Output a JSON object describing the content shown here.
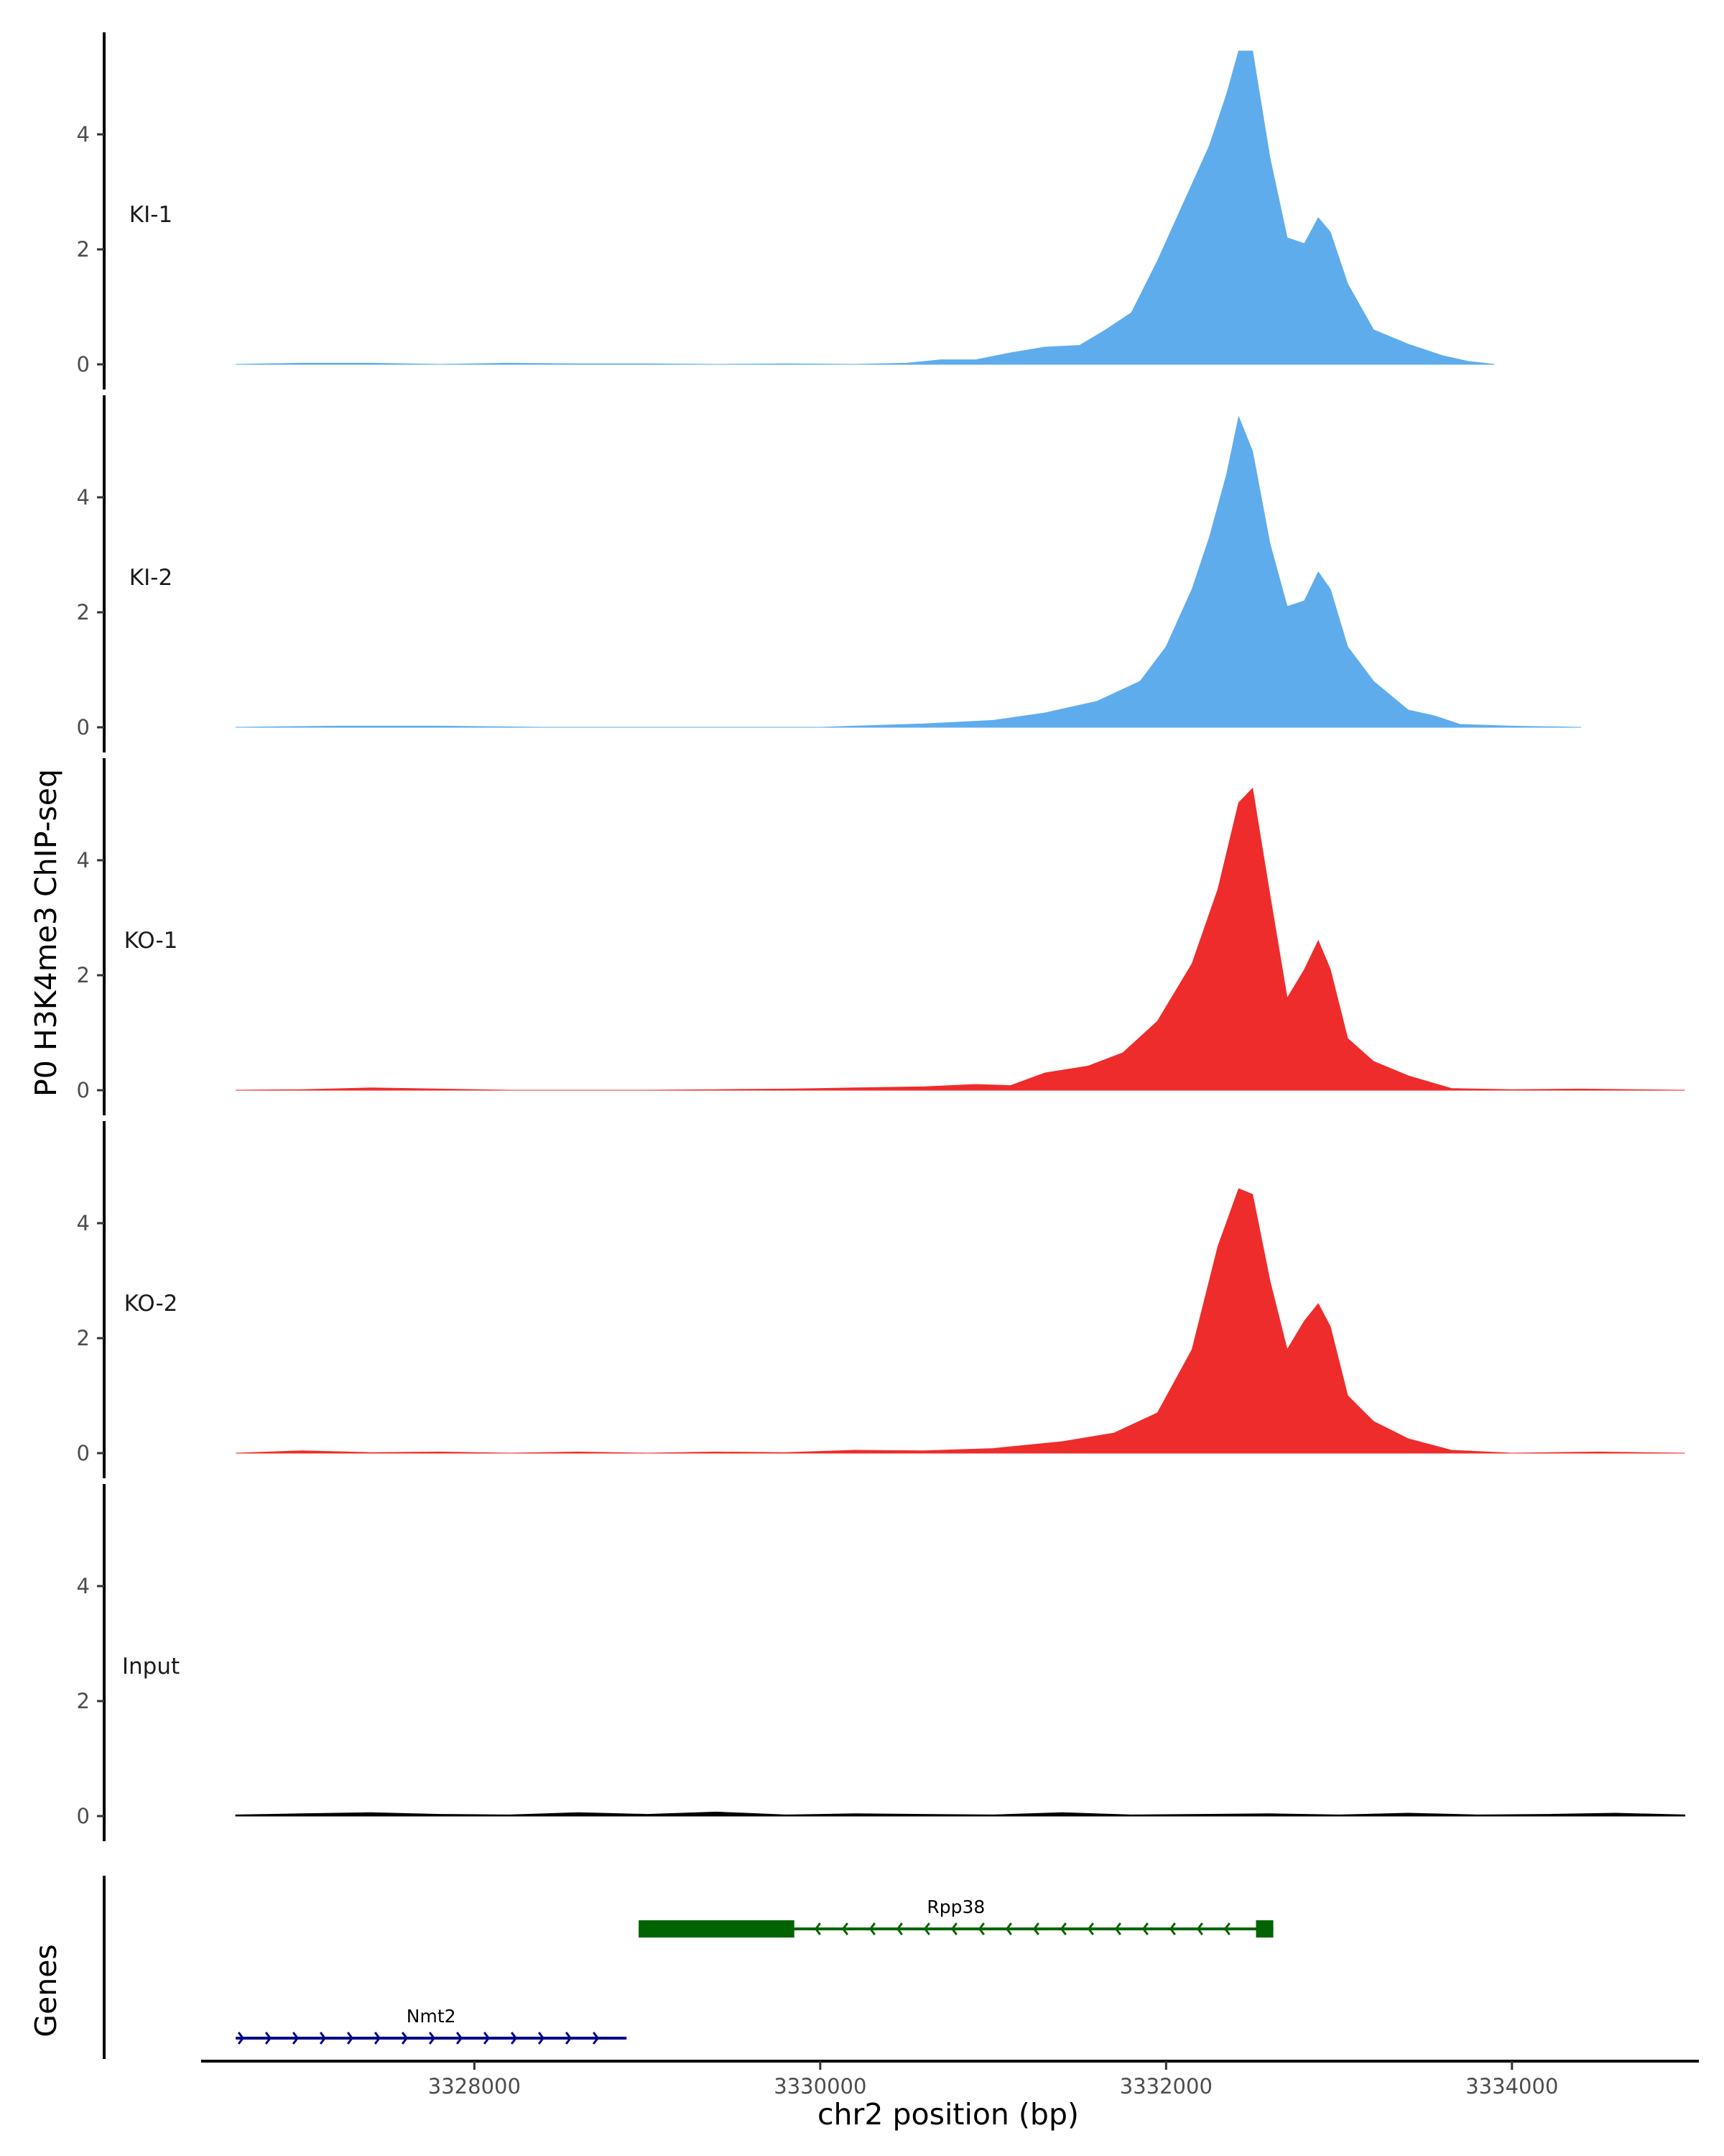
{
  "chart_data": {
    "type": "area",
    "ylabel": "P0 H3K4me3 ChIP-seq",
    "xlabel": "chr2 position (bp)",
    "xlim": [
      3326420,
      3335060
    ],
    "ylim": [
      0,
      5.6
    ],
    "xticks": [
      3328000,
      3330000,
      3332000,
      3334000
    ],
    "xtick_labels": [
      "3328000",
      "3330000",
      "3332000",
      "3334000"
    ],
    "yticks": [
      0,
      2,
      4
    ],
    "ytick_labels": [
      "0",
      "2",
      "4"
    ],
    "colors": {
      "KI": "#5faced",
      "KO": "#ee2c2c",
      "Input": "#000000"
    },
    "tracks": [
      {
        "name": "KI-1",
        "color": "#5faced",
        "x": [
          3326620,
          3327000,
          3327400,
          3327800,
          3328200,
          3328600,
          3329000,
          3329400,
          3329800,
          3330200,
          3330500,
          3330700,
          3330900,
          3331100,
          3331300,
          3331500,
          3331650,
          3331800,
          3331950,
          3332100,
          3332250,
          3332350,
          3332420,
          3332500,
          3332600,
          3332700,
          3332800,
          3332880,
          3332950,
          3333050,
          3333200,
          3333400,
          3333600,
          3333750,
          3333900
        ],
        "y": [
          0,
          0.02,
          0.02,
          0,
          0.02,
          0.01,
          0.01,
          0,
          0.01,
          0,
          0.02,
          0.08,
          0.08,
          0.2,
          0.3,
          0.33,
          0.6,
          0.9,
          1.8,
          2.8,
          3.8,
          4.7,
          5.45,
          5.45,
          3.6,
          2.2,
          2.1,
          2.55,
          2.3,
          1.4,
          0.6,
          0.35,
          0.15,
          0.05,
          0
        ]
      },
      {
        "name": "KI-2",
        "color": "#5faced",
        "x": [
          3326620,
          3327200,
          3327800,
          3328400,
          3328800,
          3329400,
          3330000,
          3330200,
          3330600,
          3331000,
          3331300,
          3331600,
          3331850,
          3332000,
          3332150,
          3332250,
          3332350,
          3332420,
          3332500,
          3332600,
          3332700,
          3332800,
          3332880,
          3332950,
          3333050,
          3333200,
          3333400,
          3333550,
          3333700,
          3334000,
          3334400
        ],
        "y": [
          0,
          0.02,
          0.02,
          0,
          0,
          0,
          0,
          0.02,
          0.06,
          0.12,
          0.25,
          0.45,
          0.8,
          1.4,
          2.4,
          3.3,
          4.4,
          5.4,
          4.8,
          3.2,
          2.1,
          2.2,
          2.7,
          2.4,
          1.4,
          0.8,
          0.3,
          0.2,
          0.05,
          0.02,
          0
        ]
      },
      {
        "name": "KO-1",
        "color": "#ee2c2c",
        "x": [
          3326620,
          3327000,
          3327400,
          3327800,
          3328200,
          3328600,
          3329000,
          3329400,
          3329800,
          3330200,
          3330600,
          3330900,
          3331100,
          3331300,
          3331550,
          3331750,
          3331950,
          3332150,
          3332300,
          3332420,
          3332500,
          3332600,
          3332700,
          3332800,
          3332880,
          3332950,
          3333050,
          3333200,
          3333400,
          3333650,
          3334000,
          3334400,
          3335000
        ],
        "y": [
          0,
          0.01,
          0.04,
          0.02,
          0,
          0,
          0,
          0.01,
          0.02,
          0.04,
          0.06,
          0.1,
          0.08,
          0.3,
          0.42,
          0.65,
          1.2,
          2.2,
          3.5,
          5.0,
          5.25,
          3.4,
          1.6,
          2.1,
          2.6,
          2.1,
          0.9,
          0.5,
          0.25,
          0.03,
          0.01,
          0.02,
          0
        ]
      },
      {
        "name": "KO-2",
        "color": "#ee2c2c",
        "x": [
          3326620,
          3327000,
          3327400,
          3327800,
          3328200,
          3328600,
          3329000,
          3329400,
          3329800,
          3330200,
          3330600,
          3331000,
          3331400,
          3331700,
          3331950,
          3332150,
          3332300,
          3332420,
          3332500,
          3332600,
          3332700,
          3332800,
          3332880,
          3332950,
          3333050,
          3333200,
          3333400,
          3333650,
          3334000,
          3334500,
          3335000
        ],
        "y": [
          0,
          0.04,
          0.01,
          0.02,
          0,
          0.02,
          0,
          0.02,
          0.01,
          0.05,
          0.04,
          0.08,
          0.2,
          0.35,
          0.7,
          1.8,
          3.6,
          4.6,
          4.5,
          3.0,
          1.8,
          2.3,
          2.6,
          2.2,
          1.0,
          0.55,
          0.25,
          0.05,
          0,
          0.02,
          0
        ]
      },
      {
        "name": "Input",
        "color": "#000000",
        "x": [
          3326620,
          3327000,
          3327400,
          3327800,
          3328200,
          3328600,
          3329000,
          3329400,
          3329800,
          3330200,
          3330600,
          3331000,
          3331400,
          3331800,
          3332200,
          3332600,
          3333000,
          3333400,
          3333800,
          3334200,
          3334600,
          3335000
        ],
        "y": [
          0.02,
          0.04,
          0.06,
          0.03,
          0.02,
          0.06,
          0.03,
          0.07,
          0.02,
          0.04,
          0.03,
          0.02,
          0.06,
          0.02,
          0.03,
          0.04,
          0.02,
          0.05,
          0.02,
          0.03,
          0.05,
          0.02
        ]
      }
    ],
    "genes_label": "Genes",
    "genes": [
      {
        "name": "Rpp38",
        "strand": "-",
        "color": "#006400",
        "start": 3328950,
        "end": 3332620,
        "exons": [
          [
            3328950,
            3329850
          ],
          [
            3332520,
            3332620
          ]
        ],
        "row": 1
      },
      {
        "name": "Nmt2",
        "strand": "+",
        "color": "#00008b",
        "start": 3326620,
        "end": 3328880,
        "exons": [],
        "row": 2
      }
    ]
  }
}
